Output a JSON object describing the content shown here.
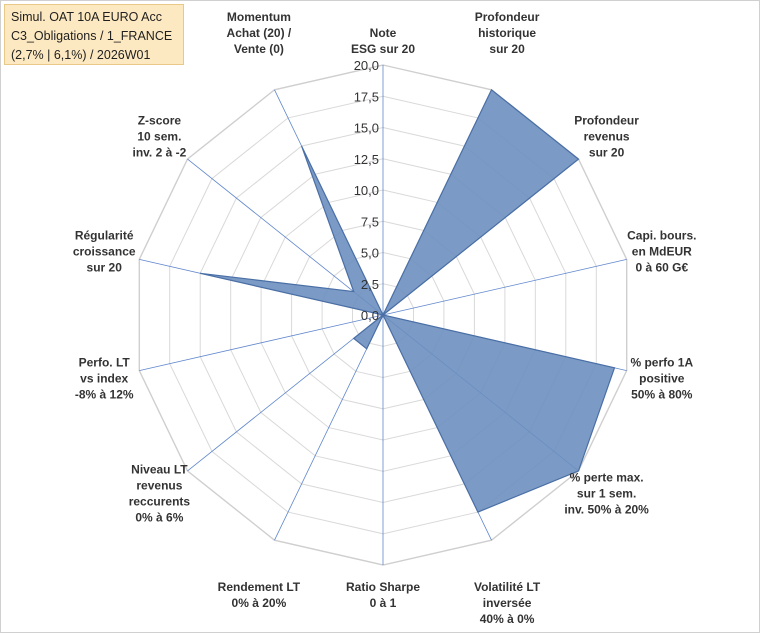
{
  "title_lines": [
    "Simul. OAT 10A EURO Acc",
    "C3_Obligations / 1_FRANCE",
    "(2,7% | 6,1%) / 2026W01"
  ],
  "colors": {
    "fill": "#6d8fbf",
    "stroke": "#4a6fa5",
    "grid": "#d9d9d9",
    "spoke": "#4472c4"
  },
  "chart_data": {
    "type": "radar",
    "rlim": [
      0,
      20
    ],
    "ticks": [
      "0,0",
      "2,5",
      "5,0",
      "7,5",
      "10,0",
      "12,5",
      "15,0",
      "17,5",
      "20,0"
    ],
    "grid": true,
    "axes": [
      {
        "lines": [
          "Note",
          "ESG sur 20"
        ],
        "value": 0
      },
      {
        "lines": [
          "Profondeur",
          "historique",
          "sur 20"
        ],
        "value": 20
      },
      {
        "lines": [
          "Profondeur",
          "revenus",
          "sur 20"
        ],
        "value": 20
      },
      {
        "lines": [
          "Capi. bours.",
          "en MdEUR",
          "0 à 60 G€"
        ],
        "value": 0
      },
      {
        "lines": [
          "% perfo 1A",
          "positive",
          "50% à 80%"
        ],
        "value": 19
      },
      {
        "lines": [
          "% perte max.",
          "sur 1 sem.",
          "inv. 50% à 20%"
        ],
        "value": 20
      },
      {
        "lines": [
          "Volatilité LT",
          "inversée",
          "40% à 0%"
        ],
        "value": 17.5
      },
      {
        "lines": [
          "Ratio Sharpe",
          "0 à 1"
        ],
        "value": 0
      },
      {
        "lines": [
          "Rendement LT",
          "0% à 20%"
        ],
        "value": 3
      },
      {
        "lines": [
          "Niveau LT",
          "revenus",
          "reccurents",
          "0% à 6%"
        ],
        "value": 3
      },
      {
        "lines": [
          "Perfo. LT",
          "vs index",
          "-8% à 12%"
        ],
        "value": 0
      },
      {
        "lines": [
          "Régularité",
          "croissance",
          "sur 20"
        ],
        "value": 15
      },
      {
        "lines": [
          "Z-score",
          "10 sem.",
          "inv. 2 à -2"
        ],
        "value": 3
      },
      {
        "lines": [
          "Momentum",
          "Achat (20) /",
          "Vente (0)"
        ],
        "value": 15
      }
    ]
  }
}
